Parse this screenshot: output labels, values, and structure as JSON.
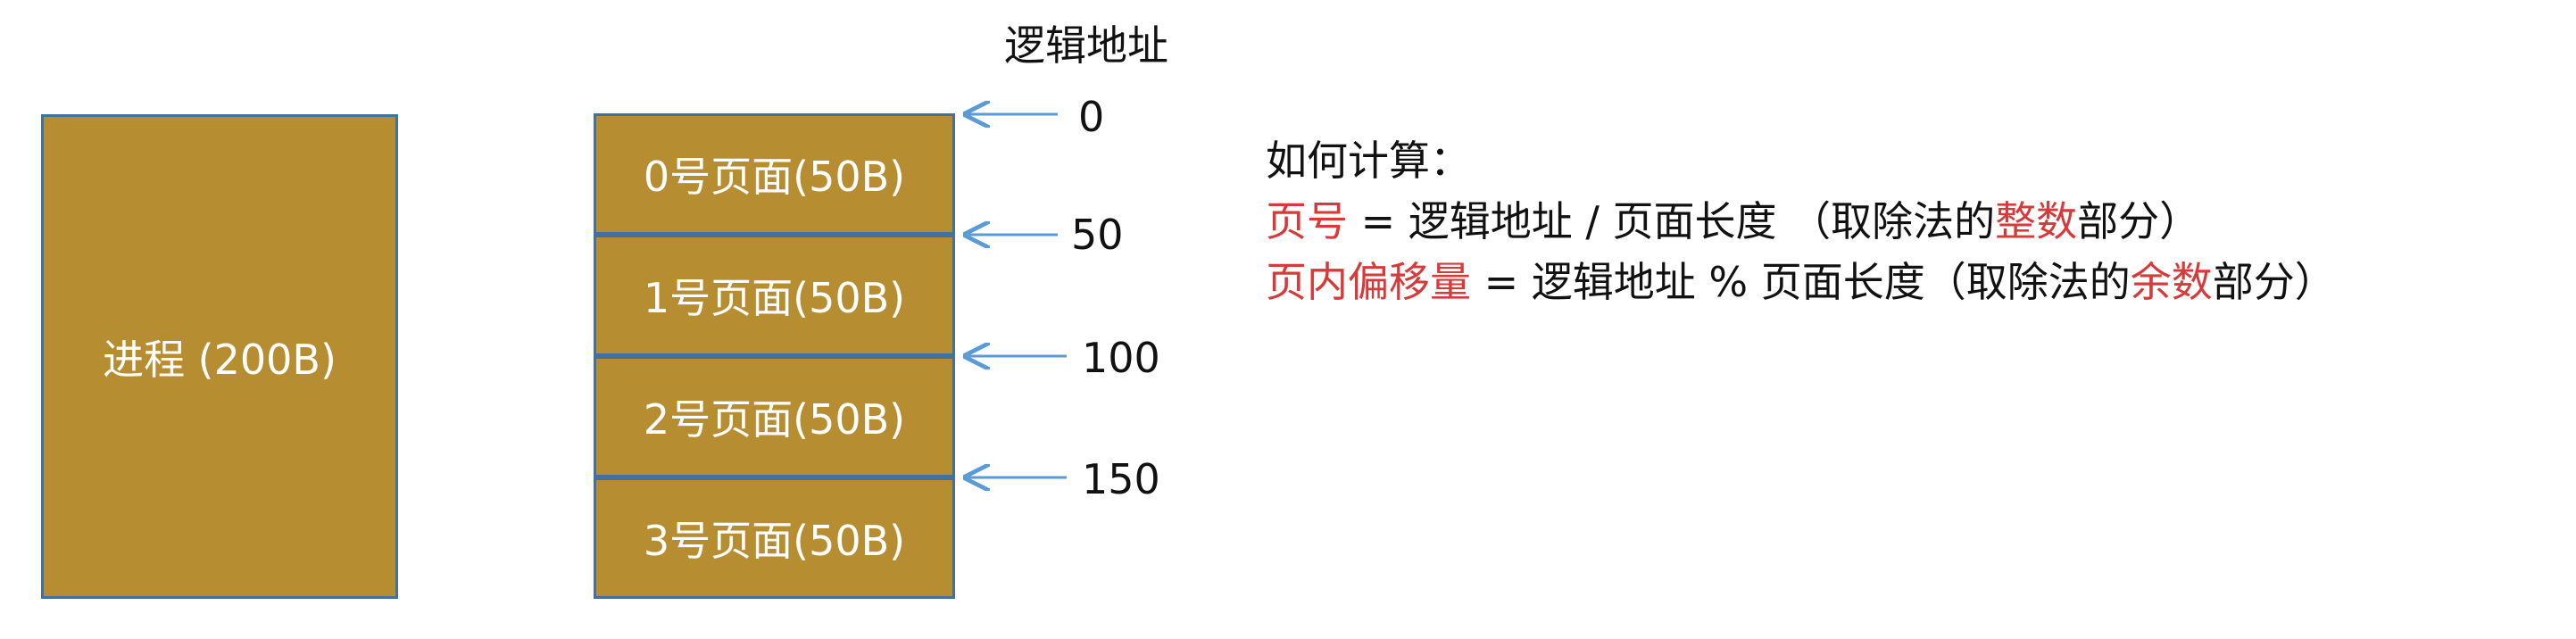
{
  "colors": {
    "block_fill": "#b68d31",
    "block_border": "#41719c",
    "arrow": "#5b9bd5",
    "highlight": "#d63a3a",
    "text": "#111111"
  },
  "process": {
    "label": "进程 (200B)"
  },
  "pages": [
    {
      "label": "0号页面(50B)"
    },
    {
      "label": "1号页面(50B)"
    },
    {
      "label": "2号页面(50B)"
    },
    {
      "label": "3号页面(50B)"
    }
  ],
  "address_axis": {
    "title": "逻辑地址",
    "ticks": [
      "0",
      "50",
      "100",
      "150"
    ]
  },
  "explanation": {
    "heading": "如何计算：",
    "formula1": {
      "term": "页号",
      "mid": " = 逻辑地址 / 页面长度 （取除法的",
      "emph": "整数",
      "tail": "部分）"
    },
    "formula2": {
      "term": "页内偏移量",
      "mid": " = 逻辑地址 % 页面长度（取除法的",
      "emph": "余数",
      "tail": "部分）"
    }
  }
}
